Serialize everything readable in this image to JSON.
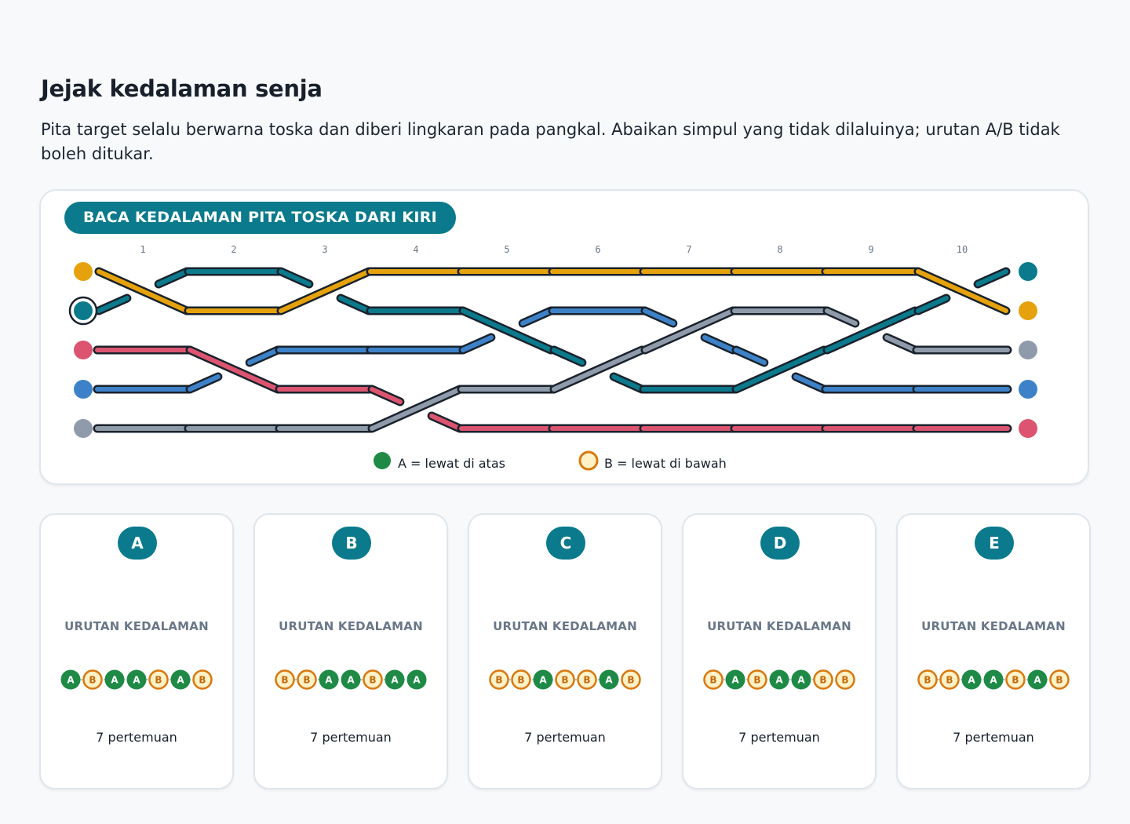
{
  "title": "Jejak kedalaman senja",
  "instructions": "Pita target selalu berwarna toska dan diberi lingkaran pada pangkal. Abaikan simpul yang tidak dilaluinya; urutan A/B tidak boleh ditukar.",
  "panel": {
    "badge": "BACA KEDALAMAN PITA TOSKA DARI KIRI",
    "columns": [
      "1",
      "2",
      "3",
      "4",
      "5",
      "6",
      "7",
      "8",
      "9",
      "10"
    ],
    "legend": {
      "a_text": "A = lewat di atas",
      "b_text": "B = lewat di bawah"
    },
    "ribbons": [
      {
        "id": "orange",
        "color": "#e6a20c",
        "start_row": 0,
        "end_row": 1,
        "target": false
      },
      {
        "id": "teal",
        "color": "#0a7a8c",
        "start_row": 1,
        "end_row": 0,
        "target": true
      },
      {
        "id": "pink",
        "color": "#dc5470",
        "start_row": 2,
        "end_row": 4,
        "target": false
      },
      {
        "id": "blue",
        "color": "#3d82c8",
        "start_row": 3,
        "end_row": 3,
        "target": false
      },
      {
        "id": "gray",
        "color": "#8f9baa",
        "start_row": 4,
        "end_row": 2,
        "target": false
      }
    ],
    "paths": {
      "orange": [
        0,
        1,
        1,
        0,
        0,
        0,
        0,
        0,
        0,
        0,
        1
      ],
      "teal": [
        1,
        0,
        0,
        1,
        1,
        2,
        3,
        3,
        2,
        1,
        0
      ],
      "pink": [
        2,
        2,
        3,
        3,
        4,
        4,
        4,
        4,
        4,
        4,
        4
      ],
      "blue": [
        3,
        3,
        2,
        2,
        2,
        1,
        1,
        2,
        3,
        3,
        3
      ],
      "gray": [
        4,
        4,
        4,
        4,
        3,
        3,
        2,
        1,
        1,
        2,
        2
      ]
    },
    "crossings": [
      {
        "col": 1,
        "over": "orange",
        "under": "teal"
      },
      {
        "col": 2,
        "over": "pink",
        "under": "blue"
      },
      {
        "col": 3,
        "over": "orange",
        "under": "teal"
      },
      {
        "col": 4,
        "over": "gray",
        "under": "pink"
      },
      {
        "col": 5,
        "over": "teal",
        "under": "blue"
      },
      {
        "col": 6,
        "over": "gray",
        "under": "teal"
      },
      {
        "col": 7,
        "over": "gray",
        "under": "blue"
      },
      {
        "col": 8,
        "over": "teal",
        "under": "blue"
      },
      {
        "col": 9,
        "over": "teal",
        "under": "gray"
      },
      {
        "col": 10,
        "over": "orange",
        "under": "teal"
      }
    ]
  },
  "options": [
    {
      "letter": "A",
      "label": "URUTAN KEDALAMAN",
      "sequence": [
        "A",
        "B",
        "A",
        "A",
        "B",
        "A",
        "B"
      ],
      "count": "7 pertemuan"
    },
    {
      "letter": "B",
      "label": "URUTAN KEDALAMAN",
      "sequence": [
        "B",
        "B",
        "A",
        "A",
        "B",
        "A",
        "A"
      ],
      "count": "7 pertemuan"
    },
    {
      "letter": "C",
      "label": "URUTAN KEDALAMAN",
      "sequence": [
        "B",
        "B",
        "A",
        "B",
        "B",
        "A",
        "B"
      ],
      "count": "7 pertemuan"
    },
    {
      "letter": "D",
      "label": "URUTAN KEDALAMAN",
      "sequence": [
        "B",
        "A",
        "B",
        "A",
        "A",
        "B",
        "B"
      ],
      "count": "7 pertemuan"
    },
    {
      "letter": "E",
      "label": "URUTAN KEDALAMAN",
      "sequence": [
        "B",
        "B",
        "A",
        "A",
        "B",
        "A",
        "B"
      ],
      "count": "7 pertemuan"
    }
  ],
  "colors": {
    "accent": "#0a7a8c",
    "over_fill": "#1e8a46",
    "under_fill": "#fff1c8",
    "under_stroke": "#d9780e"
  }
}
